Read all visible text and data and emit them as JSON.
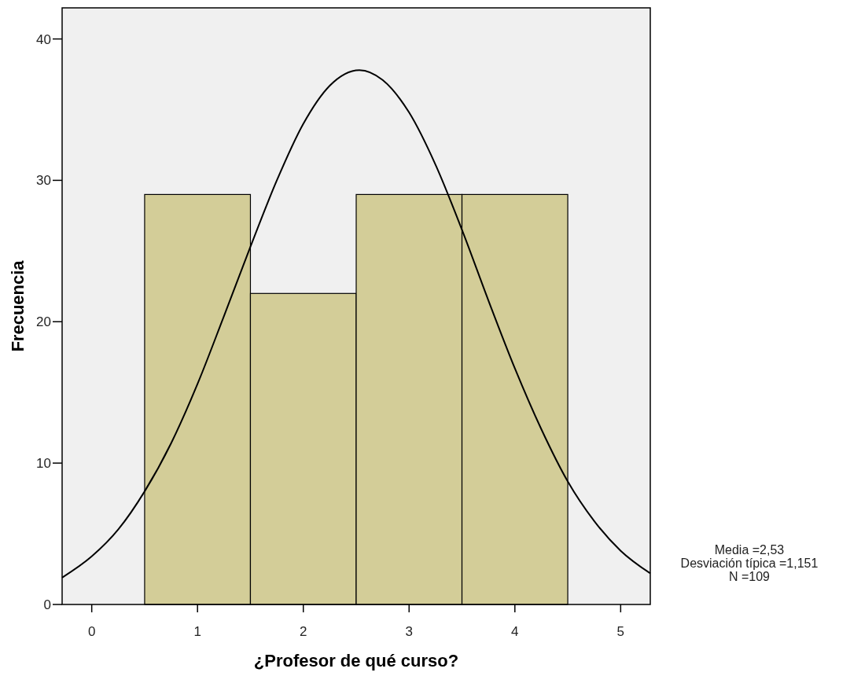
{
  "chart_data": {
    "type": "histogram",
    "xlabel": "¿Profesor de qué curso?",
    "ylabel": "Frecuencia",
    "bins": [
      0.5,
      1.5,
      2.5,
      3.5,
      4.5
    ],
    "values": [
      29,
      22,
      29,
      29
    ],
    "color": "#d3cd98",
    "series": [
      {
        "type": "line",
        "color": "#000000",
        "x": [
          -0.28,
          0,
          0.25,
          0.5,
          0.75,
          1,
          1.25,
          1.5,
          1.75,
          2,
          2.25,
          2.53,
          2.75,
          3,
          3.25,
          3.5,
          3.75,
          4,
          4.25,
          4.5,
          4.75,
          5,
          5.28
        ],
        "values": [
          1.9,
          3.4,
          5.3,
          8.0,
          11.4,
          15.6,
          20.4,
          25.3,
          30.0,
          34.0,
          36.7,
          37.8,
          37.1,
          34.8,
          31.1,
          26.5,
          21.5,
          16.7,
          12.4,
          8.7,
          5.9,
          3.8,
          2.2
        ]
      }
    ],
    "xlim": [
      -0.28,
      5.28
    ],
    "xticks": [
      0,
      1,
      2,
      3,
      4,
      5
    ],
    "ylim": [
      0,
      42.2
    ],
    "yticks": [
      0,
      10,
      20,
      30,
      40
    ],
    "grid": false,
    "annotations": [
      "Media =2,53",
      "Desviación típica =1,151",
      "N =109"
    ]
  }
}
